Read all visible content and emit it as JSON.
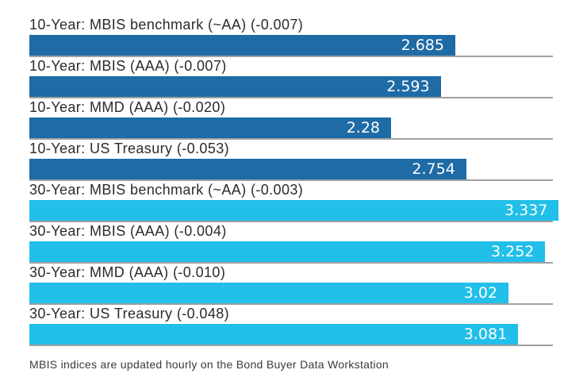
{
  "chart_data": {
    "type": "bar",
    "orientation": "horizontal",
    "title": "",
    "xlabel": "",
    "ylabel": "",
    "xlim": [
      0,
      3.3
    ],
    "grid": "row-baselines-only",
    "legend_position": "none",
    "categories": [
      "10-Year: MBIS benchmark (~AA) (-0.007)",
      "10-Year: MBIS (AAA) (-0.007)",
      "10-Year: MMD (AAA) (-0.020)",
      "10-Year: US Treasury (-0.053)",
      "30-Year: MBIS benchmark (~AA) (-0.003)",
      "30-Year: MBIS (AAA) (-0.004)",
      "30-Year: MMD (AAA) (-0.010)",
      "30-Year: US Treasury (-0.048)"
    ],
    "values": [
      2.685,
      2.593,
      2.28,
      2.754,
      3.337,
      3.252,
      3.02,
      3.081
    ],
    "value_labels": [
      "2.685",
      "2.593",
      "2.28",
      "2.754",
      "3.337",
      "3.252",
      "3.02",
      "3.081"
    ],
    "groups": [
      "10-year",
      "10-year",
      "10-year",
      "10-year",
      "30-year",
      "30-year",
      "30-year",
      "30-year"
    ],
    "colors": {
      "10-year": "#1e6ba5",
      "30-year": "#21bfe9",
      "value_text": "#ffffff",
      "baseline": "#a0a0a0",
      "label_text": "#2b2b2b"
    }
  },
  "footer": {
    "note": "MBIS indices are updated hourly on the Bond Buyer Data Workstation"
  }
}
